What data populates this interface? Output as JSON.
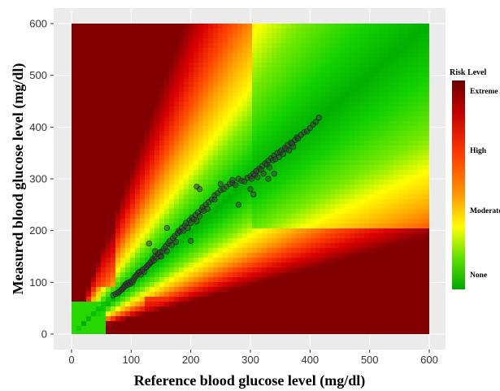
{
  "chart_data": {
    "type": "heatmap",
    "title": "",
    "xlabel": "Reference blood glucose level (mg/dl)",
    "ylabel": "Measured blood glucose level (mg/dl)",
    "xlim": [
      0,
      600
    ],
    "ylim": [
      0,
      600
    ],
    "x_ticks": [
      "0",
      "100",
      "200",
      "300",
      "400",
      "500",
      "600"
    ],
    "y_ticks": [
      "0",
      "100",
      "200",
      "300",
      "400",
      "500",
      "600"
    ],
    "grid": true,
    "legend": {
      "title": "Risk Level",
      "placement": "right",
      "labels": [
        "Extreme",
        "High",
        "Moderate",
        "None"
      ],
      "colors": [
        "#7a0000",
        "#ff4000",
        "#ffff00",
        "#00b000"
      ]
    },
    "colors": {
      "panel_background": "#ebebeb",
      "grid": "#ffffff",
      "point_fill": "#3c3c3c",
      "none": "#00b000",
      "moderate": "#ffff00",
      "high": "#ff4000",
      "extreme": "#7a0000"
    },
    "series": [
      {
        "kind": "scatter",
        "x": [
          70,
          74,
          78,
          80,
          83,
          85,
          87,
          89,
          90,
          92,
          94,
          96,
          98,
          100,
          102,
          104,
          106,
          108,
          110,
          112,
          114,
          116,
          118,
          120,
          122,
          124,
          126,
          128,
          130,
          132,
          134,
          136,
          138,
          140,
          143,
          145,
          148,
          150,
          152,
          155,
          158,
          160,
          162,
          165,
          168,
          170,
          173,
          175,
          178,
          180,
          182,
          185,
          188,
          190,
          192,
          195,
          198,
          200,
          202,
          205,
          208,
          210,
          212,
          215,
          218,
          220,
          222,
          225,
          228,
          230,
          235,
          240,
          245,
          250,
          255,
          260,
          265,
          270,
          275,
          280,
          285,
          290,
          295,
          300,
          302,
          305,
          308,
          310,
          312,
          315,
          318,
          320,
          322,
          325,
          328,
          330,
          332,
          335,
          338,
          340,
          342,
          345,
          348,
          350,
          352,
          355,
          358,
          360,
          362,
          365,
          368,
          370,
          372,
          375,
          378,
          380,
          385,
          390,
          395,
          400,
          405,
          410,
          415,
          210,
          215,
          250,
          270,
          300,
          305,
          310,
          130,
          140,
          150,
          160,
          330,
          340,
          200,
          240,
          280
        ],
        "y": [
          75,
          78,
          80,
          82,
          85,
          87,
          90,
          92,
          95,
          98,
          95,
          100,
          97,
          102,
          100,
          105,
          110,
          112,
          115,
          118,
          120,
          115,
          122,
          125,
          120,
          128,
          130,
          133,
          135,
          138,
          140,
          145,
          142,
          150,
          148,
          155,
          158,
          150,
          160,
          165,
          170,
          160,
          175,
          180,
          172,
          185,
          190,
          178,
          195,
          200,
          198,
          205,
          200,
          210,
          215,
          205,
          220,
          215,
          225,
          222,
          230,
          218,
          235,
          228,
          240,
          245,
          238,
          250,
          242,
          255,
          260,
          268,
          272,
          278,
          280,
          285,
          290,
          292,
          288,
          300,
          296,
          295,
          302,
          305,
          300,
          310,
          308,
          315,
          303,
          320,
          318,
          325,
          310,
          330,
          328,
          335,
          322,
          340,
          336,
          345,
          338,
          350,
          342,
          352,
          355,
          348,
          360,
          358,
          365,
          355,
          370,
          368,
          362,
          375,
          380,
          378,
          385,
          390,
          392,
          398,
          405,
          410,
          418,
          285,
          280,
          290,
          298,
          280,
          270,
          315,
          175,
          160,
          150,
          205,
          300,
          310,
          180,
          260,
          250
        ]
      }
    ]
  }
}
